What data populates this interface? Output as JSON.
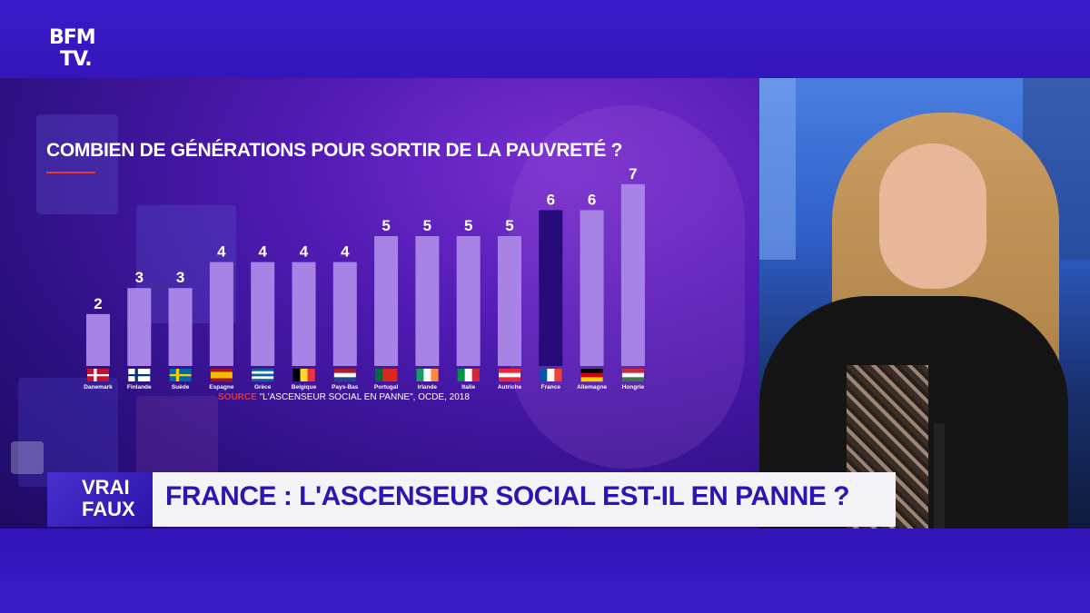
{
  "channel": {
    "logo_line1": "BFM",
    "logo_line2": "TV."
  },
  "chart_data": {
    "type": "bar",
    "title": "COMBIEN DE GÉNÉRATIONS POUR SORTIR DE LA PAUVRETÉ ?",
    "categories": [
      "Danemark",
      "Finlande",
      "Suède",
      "Espagne",
      "Grèce",
      "Belgique",
      "Pays-Bas",
      "Portugal",
      "Irlande",
      "Italie",
      "Autriche",
      "France",
      "Allemagne",
      "Hongrie"
    ],
    "values": [
      2,
      3,
      3,
      4,
      4,
      4,
      4,
      5,
      5,
      5,
      5,
      6,
      6,
      7
    ],
    "highlight": "France",
    "colors": {
      "bar": "#a883e6",
      "highlight": "#260c7a",
      "label": "#ffffff"
    },
    "source_label": "SOURCE",
    "source_text": "\"L'ASCENSEUR SOCIAL EN PANNE\", OCDE, 2018",
    "flags": [
      "dk",
      "fi",
      "se",
      "es",
      "gr",
      "be",
      "nl",
      "pt",
      "ie",
      "it",
      "at",
      "fr",
      "de",
      "hu"
    ]
  },
  "banner": {
    "badge_line1": "VRAI",
    "badge_line2": "FAUX",
    "headline": "FRANCE : L'ASCENSEUR SOCIAL EST-IL EN PANNE ?"
  }
}
